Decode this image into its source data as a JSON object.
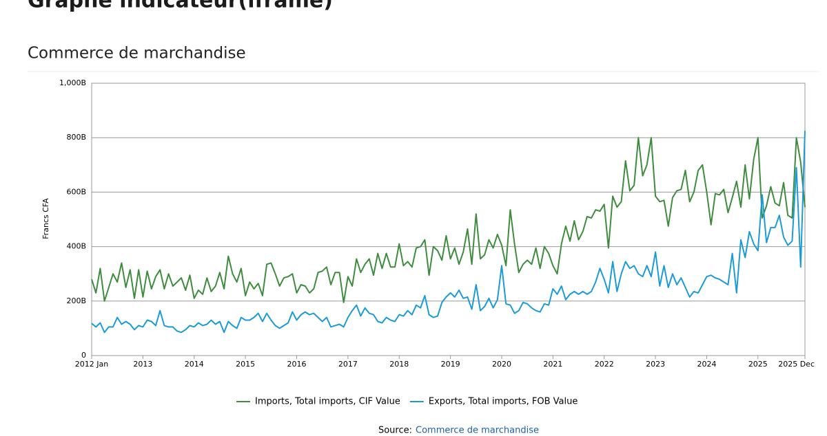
{
  "page_title": "Graphe indicateur(iframe)",
  "section_title": "Commerce de marchandise",
  "source": {
    "label": "Source:",
    "link": "Commerce de marchandise"
  },
  "chart_data": {
    "type": "line",
    "ylabel": "Francs CFA",
    "x": [
      "2012-01",
      "2012-02",
      "2012-03",
      "2012-04",
      "2012-05",
      "2012-06",
      "2012-07",
      "2012-08",
      "2012-09",
      "2012-10",
      "2012-11",
      "2012-12",
      "2013-01",
      "2013-02",
      "2013-03",
      "2013-04",
      "2013-05",
      "2013-06",
      "2013-07",
      "2013-08",
      "2013-09",
      "2013-10",
      "2013-11",
      "2013-12",
      "2014-01",
      "2014-02",
      "2014-03",
      "2014-04",
      "2014-05",
      "2014-06",
      "2014-07",
      "2014-08",
      "2014-09",
      "2014-10",
      "2014-11",
      "2014-12",
      "2015-01",
      "2015-02",
      "2015-03",
      "2015-04",
      "2015-05",
      "2015-06",
      "2015-07",
      "2015-08",
      "2015-09",
      "2015-10",
      "2015-11",
      "2015-12",
      "2016-01",
      "2016-02",
      "2016-03",
      "2016-04",
      "2016-05",
      "2016-06",
      "2016-07",
      "2016-08",
      "2016-09",
      "2016-10",
      "2016-11",
      "2016-12",
      "2017-01",
      "2017-02",
      "2017-03",
      "2017-04",
      "2017-05",
      "2017-06",
      "2017-07",
      "2017-08",
      "2017-09",
      "2017-10",
      "2017-11",
      "2017-12",
      "2018-01",
      "2018-02",
      "2018-03",
      "2018-04",
      "2018-05",
      "2018-06",
      "2018-07",
      "2018-08",
      "2018-09",
      "2018-10",
      "2018-11",
      "2018-12",
      "2019-01",
      "2019-02",
      "2019-03",
      "2019-04",
      "2019-05",
      "2019-06",
      "2019-07",
      "2019-08",
      "2019-09",
      "2019-10",
      "2019-11",
      "2019-12",
      "2020-01",
      "2020-02",
      "2020-03",
      "2020-04",
      "2020-05",
      "2020-06",
      "2020-07",
      "2020-08",
      "2020-09",
      "2020-10",
      "2020-11",
      "2020-12",
      "2021-01",
      "2021-02",
      "2021-03",
      "2021-04",
      "2021-05",
      "2021-06",
      "2021-07",
      "2021-08",
      "2021-09",
      "2021-10",
      "2021-11",
      "2021-12",
      "2022-01",
      "2022-02",
      "2022-03",
      "2022-04",
      "2022-05",
      "2022-06",
      "2022-07",
      "2022-08",
      "2022-09",
      "2022-10",
      "2022-11",
      "2022-12",
      "2023-01",
      "2023-02",
      "2023-03",
      "2023-04",
      "2023-05",
      "2023-06",
      "2023-07",
      "2023-08",
      "2023-09",
      "2023-10",
      "2023-11",
      "2023-12",
      "2024-01",
      "2024-02",
      "2024-03",
      "2024-04",
      "2024-05",
      "2024-06",
      "2024-07",
      "2024-08",
      "2024-09",
      "2024-10",
      "2024-11",
      "2024-12",
      "2025-01",
      "2025-02",
      "2025-03",
      "2025-04",
      "2025-05",
      "2025-06",
      "2025-07",
      "2025-08",
      "2025-09",
      "2025-10",
      "2025-11",
      "2025-12"
    ],
    "series": [
      {
        "name": "Imports, Total imports, CIF Value",
        "color": "#3d8c3d",
        "values": [
          280,
          230,
          320,
          200,
          250,
          300,
          270,
          340,
          250,
          315,
          210,
          315,
          215,
          310,
          245,
          290,
          315,
          245,
          300,
          255,
          270,
          285,
          240,
          295,
          210,
          240,
          225,
          285,
          235,
          255,
          305,
          245,
          365,
          300,
          270,
          320,
          220,
          270,
          245,
          265,
          220,
          335,
          340,
          300,
          255,
          285,
          290,
          300,
          230,
          260,
          255,
          230,
          245,
          305,
          310,
          325,
          260,
          305,
          305,
          195,
          290,
          255,
          355,
          305,
          335,
          355,
          295,
          375,
          320,
          375,
          325,
          325,
          410,
          330,
          345,
          325,
          395,
          400,
          425,
          295,
          400,
          385,
          350,
          440,
          355,
          395,
          335,
          380,
          465,
          335,
          520,
          355,
          370,
          425,
          395,
          445,
          405,
          330,
          535,
          410,
          305,
          335,
          350,
          335,
          395,
          320,
          400,
          375,
          330,
          300,
          410,
          475,
          420,
          495,
          425,
          455,
          510,
          505,
          535,
          530,
          555,
          395,
          585,
          545,
          565,
          715,
          605,
          625,
          800,
          660,
          700,
          800,
          585,
          565,
          570,
          475,
          580,
          605,
          610,
          680,
          565,
          600,
          680,
          700,
          600,
          480,
          595,
          590,
          610,
          525,
          580,
          640,
          545,
          700,
          575,
          720,
          800,
          505,
          550,
          620,
          560,
          550,
          635,
          515,
          505,
          800,
          710,
          545
        ]
      },
      {
        "name": "Exports, Total imports, FOB Value",
        "color": "#1a9bd7",
        "values": [
          118,
          105,
          120,
          85,
          105,
          105,
          140,
          115,
          125,
          115,
          95,
          110,
          105,
          130,
          125,
          110,
          165,
          110,
          105,
          105,
          90,
          85,
          95,
          110,
          105,
          120,
          110,
          115,
          130,
          115,
          125,
          85,
          125,
          110,
          100,
          140,
          130,
          130,
          140,
          155,
          125,
          155,
          130,
          110,
          100,
          110,
          120,
          160,
          130,
          150,
          160,
          150,
          155,
          140,
          125,
          140,
          105,
          110,
          115,
          105,
          140,
          165,
          185,
          145,
          175,
          155,
          150,
          125,
          120,
          140,
          130,
          125,
          150,
          145,
          165,
          150,
          185,
          175,
          220,
          150,
          140,
          145,
          195,
          215,
          230,
          215,
          240,
          210,
          215,
          170,
          260,
          165,
          180,
          210,
          175,
          205,
          330,
          190,
          185,
          155,
          165,
          195,
          190,
          175,
          165,
          160,
          190,
          185,
          245,
          225,
          255,
          205,
          225,
          235,
          225,
          235,
          225,
          235,
          270,
          320,
          280,
          230,
          345,
          235,
          300,
          345,
          320,
          330,
          300,
          290,
          330,
          290,
          380,
          255,
          330,
          250,
          300,
          260,
          285,
          250,
          215,
          235,
          230,
          260,
          290,
          295,
          285,
          280,
          270,
          260,
          375,
          230,
          425,
          360,
          455,
          410,
          385,
          590,
          415,
          470,
          470,
          515,
          435,
          405,
          420,
          690,
          325,
          825
        ]
      }
    ],
    "ylim": [
      0,
      1000
    ],
    "yticks": [
      0,
      {
        "value": 200,
        "label": "200B"
      },
      {
        "value": 400,
        "label": "400B"
      },
      {
        "value": 600,
        "label": "600B"
      },
      {
        "value": 800,
        "label": "800B"
      },
      {
        "value": 1000,
        "label": "1,000B"
      }
    ],
    "xticks": [
      {
        "value": "2012-01",
        "label": "2012 Jan"
      },
      {
        "value": "2013-01",
        "label": "2013"
      },
      {
        "value": "2014-01",
        "label": "2014"
      },
      {
        "value": "2015-01",
        "label": "2015"
      },
      {
        "value": "2016-01",
        "label": "2016"
      },
      {
        "value": "2017-01",
        "label": "2017"
      },
      {
        "value": "2018-01",
        "label": "2018"
      },
      {
        "value": "2019-01",
        "label": "2019"
      },
      {
        "value": "2020-01",
        "label": "2020"
      },
      {
        "value": "2021-01",
        "label": "2021"
      },
      {
        "value": "2022-01",
        "label": "2022"
      },
      {
        "value": "2023-01",
        "label": "2023"
      },
      {
        "value": "2024-01",
        "label": "2024"
      },
      {
        "value": "2025-01",
        "label": "2025"
      },
      {
        "value": "2025-12",
        "label": "2025 Dec"
      }
    ],
    "grid": true,
    "legend": "bottom"
  }
}
